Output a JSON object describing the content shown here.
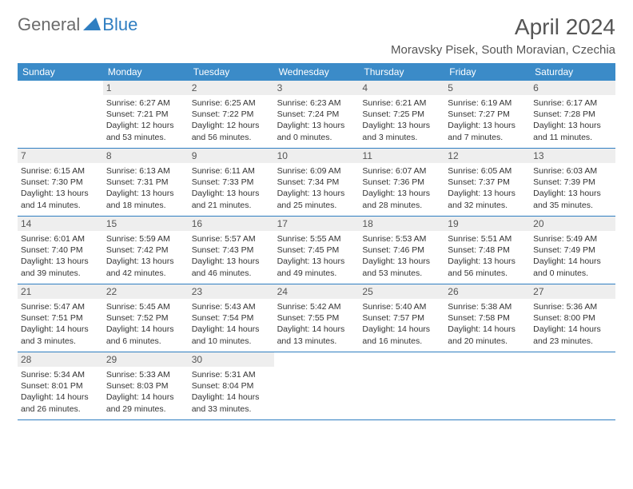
{
  "logo": {
    "text1": "General",
    "text2": "Blue"
  },
  "title": "April 2024",
  "location": "Moravsky Pisek, South Moravian, Czechia",
  "colors": {
    "header_bg": "#3b8bc8",
    "accent": "#2f7ec1",
    "daynum_bg": "#eeeeee",
    "text_dark": "#333333",
    "text_mid": "#555555",
    "text_light": "#6b6b6b",
    "white": "#ffffff"
  },
  "weekdays": [
    "Sunday",
    "Monday",
    "Tuesday",
    "Wednesday",
    "Thursday",
    "Friday",
    "Saturday"
  ],
  "weeks": [
    [
      {
        "n": "",
        "sr": "",
        "ss": "",
        "dl": ""
      },
      {
        "n": "1",
        "sr": "Sunrise: 6:27 AM",
        "ss": "Sunset: 7:21 PM",
        "dl": "Daylight: 12 hours and 53 minutes."
      },
      {
        "n": "2",
        "sr": "Sunrise: 6:25 AM",
        "ss": "Sunset: 7:22 PM",
        "dl": "Daylight: 12 hours and 56 minutes."
      },
      {
        "n": "3",
        "sr": "Sunrise: 6:23 AM",
        "ss": "Sunset: 7:24 PM",
        "dl": "Daylight: 13 hours and 0 minutes."
      },
      {
        "n": "4",
        "sr": "Sunrise: 6:21 AM",
        "ss": "Sunset: 7:25 PM",
        "dl": "Daylight: 13 hours and 3 minutes."
      },
      {
        "n": "5",
        "sr": "Sunrise: 6:19 AM",
        "ss": "Sunset: 7:27 PM",
        "dl": "Daylight: 13 hours and 7 minutes."
      },
      {
        "n": "6",
        "sr": "Sunrise: 6:17 AM",
        "ss": "Sunset: 7:28 PM",
        "dl": "Daylight: 13 hours and 11 minutes."
      }
    ],
    [
      {
        "n": "7",
        "sr": "Sunrise: 6:15 AM",
        "ss": "Sunset: 7:30 PM",
        "dl": "Daylight: 13 hours and 14 minutes."
      },
      {
        "n": "8",
        "sr": "Sunrise: 6:13 AM",
        "ss": "Sunset: 7:31 PM",
        "dl": "Daylight: 13 hours and 18 minutes."
      },
      {
        "n": "9",
        "sr": "Sunrise: 6:11 AM",
        "ss": "Sunset: 7:33 PM",
        "dl": "Daylight: 13 hours and 21 minutes."
      },
      {
        "n": "10",
        "sr": "Sunrise: 6:09 AM",
        "ss": "Sunset: 7:34 PM",
        "dl": "Daylight: 13 hours and 25 minutes."
      },
      {
        "n": "11",
        "sr": "Sunrise: 6:07 AM",
        "ss": "Sunset: 7:36 PM",
        "dl": "Daylight: 13 hours and 28 minutes."
      },
      {
        "n": "12",
        "sr": "Sunrise: 6:05 AM",
        "ss": "Sunset: 7:37 PM",
        "dl": "Daylight: 13 hours and 32 minutes."
      },
      {
        "n": "13",
        "sr": "Sunrise: 6:03 AM",
        "ss": "Sunset: 7:39 PM",
        "dl": "Daylight: 13 hours and 35 minutes."
      }
    ],
    [
      {
        "n": "14",
        "sr": "Sunrise: 6:01 AM",
        "ss": "Sunset: 7:40 PM",
        "dl": "Daylight: 13 hours and 39 minutes."
      },
      {
        "n": "15",
        "sr": "Sunrise: 5:59 AM",
        "ss": "Sunset: 7:42 PM",
        "dl": "Daylight: 13 hours and 42 minutes."
      },
      {
        "n": "16",
        "sr": "Sunrise: 5:57 AM",
        "ss": "Sunset: 7:43 PM",
        "dl": "Daylight: 13 hours and 46 minutes."
      },
      {
        "n": "17",
        "sr": "Sunrise: 5:55 AM",
        "ss": "Sunset: 7:45 PM",
        "dl": "Daylight: 13 hours and 49 minutes."
      },
      {
        "n": "18",
        "sr": "Sunrise: 5:53 AM",
        "ss": "Sunset: 7:46 PM",
        "dl": "Daylight: 13 hours and 53 minutes."
      },
      {
        "n": "19",
        "sr": "Sunrise: 5:51 AM",
        "ss": "Sunset: 7:48 PM",
        "dl": "Daylight: 13 hours and 56 minutes."
      },
      {
        "n": "20",
        "sr": "Sunrise: 5:49 AM",
        "ss": "Sunset: 7:49 PM",
        "dl": "Daylight: 14 hours and 0 minutes."
      }
    ],
    [
      {
        "n": "21",
        "sr": "Sunrise: 5:47 AM",
        "ss": "Sunset: 7:51 PM",
        "dl": "Daylight: 14 hours and 3 minutes."
      },
      {
        "n": "22",
        "sr": "Sunrise: 5:45 AM",
        "ss": "Sunset: 7:52 PM",
        "dl": "Daylight: 14 hours and 6 minutes."
      },
      {
        "n": "23",
        "sr": "Sunrise: 5:43 AM",
        "ss": "Sunset: 7:54 PM",
        "dl": "Daylight: 14 hours and 10 minutes."
      },
      {
        "n": "24",
        "sr": "Sunrise: 5:42 AM",
        "ss": "Sunset: 7:55 PM",
        "dl": "Daylight: 14 hours and 13 minutes."
      },
      {
        "n": "25",
        "sr": "Sunrise: 5:40 AM",
        "ss": "Sunset: 7:57 PM",
        "dl": "Daylight: 14 hours and 16 minutes."
      },
      {
        "n": "26",
        "sr": "Sunrise: 5:38 AM",
        "ss": "Sunset: 7:58 PM",
        "dl": "Daylight: 14 hours and 20 minutes."
      },
      {
        "n": "27",
        "sr": "Sunrise: 5:36 AM",
        "ss": "Sunset: 8:00 PM",
        "dl": "Daylight: 14 hours and 23 minutes."
      }
    ],
    [
      {
        "n": "28",
        "sr": "Sunrise: 5:34 AM",
        "ss": "Sunset: 8:01 PM",
        "dl": "Daylight: 14 hours and 26 minutes."
      },
      {
        "n": "29",
        "sr": "Sunrise: 5:33 AM",
        "ss": "Sunset: 8:03 PM",
        "dl": "Daylight: 14 hours and 29 minutes."
      },
      {
        "n": "30",
        "sr": "Sunrise: 5:31 AM",
        "ss": "Sunset: 8:04 PM",
        "dl": "Daylight: 14 hours and 33 minutes."
      },
      {
        "n": "",
        "sr": "",
        "ss": "",
        "dl": ""
      },
      {
        "n": "",
        "sr": "",
        "ss": "",
        "dl": ""
      },
      {
        "n": "",
        "sr": "",
        "ss": "",
        "dl": ""
      },
      {
        "n": "",
        "sr": "",
        "ss": "",
        "dl": ""
      }
    ]
  ]
}
